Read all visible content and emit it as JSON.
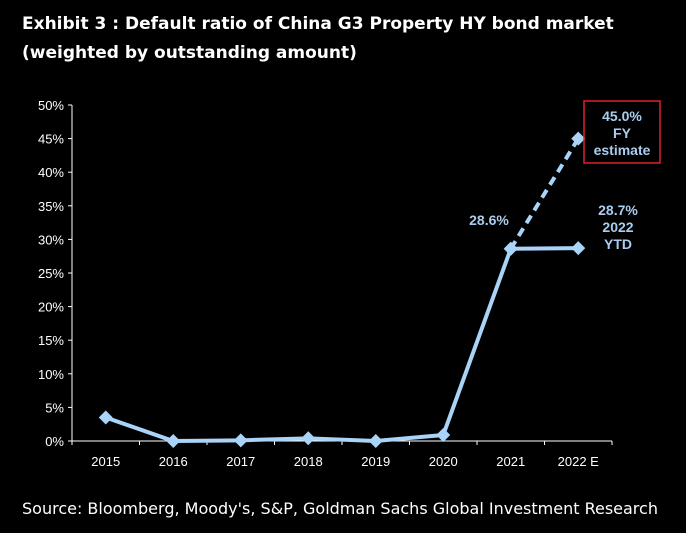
{
  "title": "Exhibit 3 : Default ratio of China G3 Property HY bond market (weighted by outstanding amount)",
  "source": "Source: Bloomberg, Moody's, S&P, Goldman Sachs Global Investment Research",
  "chart_data": {
    "type": "line",
    "title": "Exhibit 3 : Default ratio of China G3 Property HY bond market (weighted by outstanding amount)",
    "xlabel": "",
    "ylabel": "",
    "categories": [
      "2015",
      "2016",
      "2017",
      "2018",
      "2019",
      "2020",
      "2021",
      "2022 E"
    ],
    "ylim": [
      0,
      50
    ],
    "yticks": [
      "0%",
      "5%",
      "10%",
      "15%",
      "20%",
      "25%",
      "30%",
      "35%",
      "40%",
      "45%",
      "50%"
    ],
    "grid": false,
    "series": [
      {
        "name": "",
        "style": "solid",
        "values": [
          3.5,
          0.0,
          0.1,
          0.4,
          0.0,
          0.9,
          28.6,
          28.7
        ]
      },
      {
        "name": "",
        "style": "dashed",
        "values": [
          null,
          null,
          null,
          null,
          null,
          null,
          28.6,
          45.0
        ]
      }
    ],
    "annotations": {
      "y2021": "28.6%",
      "ytd": [
        "28.7%",
        "2022",
        "YTD"
      ],
      "fy": [
        "45.0%",
        "FY",
        "estimate"
      ]
    },
    "colors": {
      "line": "#a9d4f7",
      "annotation": "#a9cdee",
      "box": "#e0202a"
    }
  }
}
